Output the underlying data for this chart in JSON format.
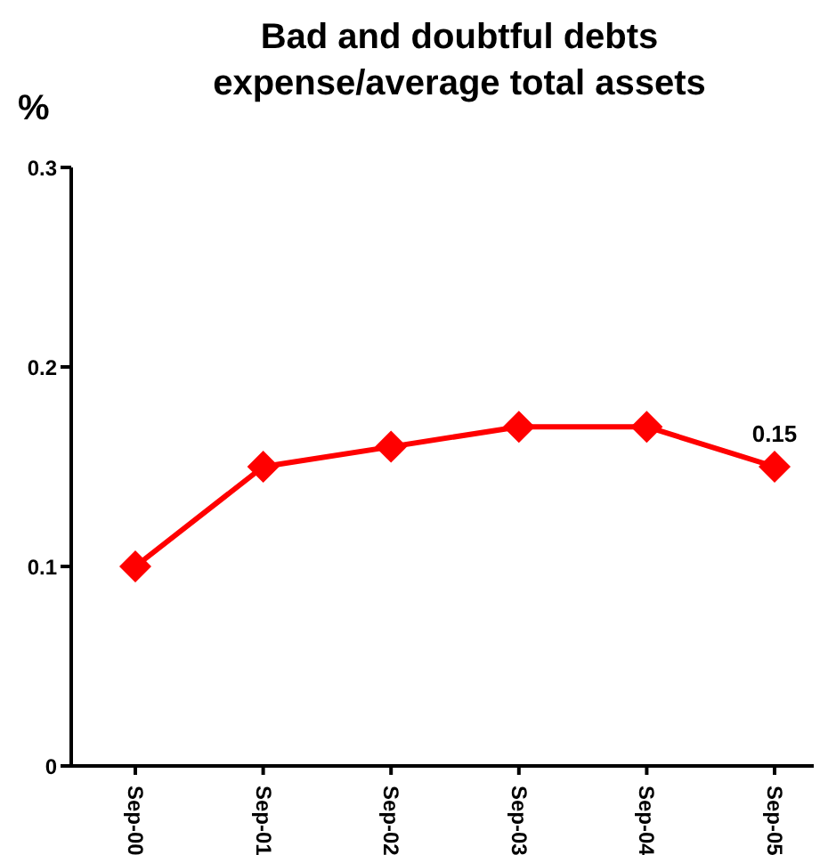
{
  "chart_data": {
    "type": "line",
    "title": "Bad and doubtful debts expense/average total assets",
    "ylabel": "%",
    "categories": [
      "Sep-00",
      "Sep-01",
      "Sep-02",
      "Sep-03",
      "Sep-04",
      "Sep-05"
    ],
    "series": [
      {
        "color": "#ff0000",
        "values": [
          0.1,
          0.15,
          0.16,
          0.17,
          0.17,
          0.15
        ],
        "value_labels": [
          null,
          null,
          null,
          null,
          null,
          "0.15"
        ]
      }
    ],
    "ylim": [
      0,
      0.3
    ],
    "yticks": [
      0,
      0.1,
      0.2,
      0.3
    ],
    "grid": false,
    "legend": false,
    "marker": "diamond",
    "line_style": "solid"
  }
}
